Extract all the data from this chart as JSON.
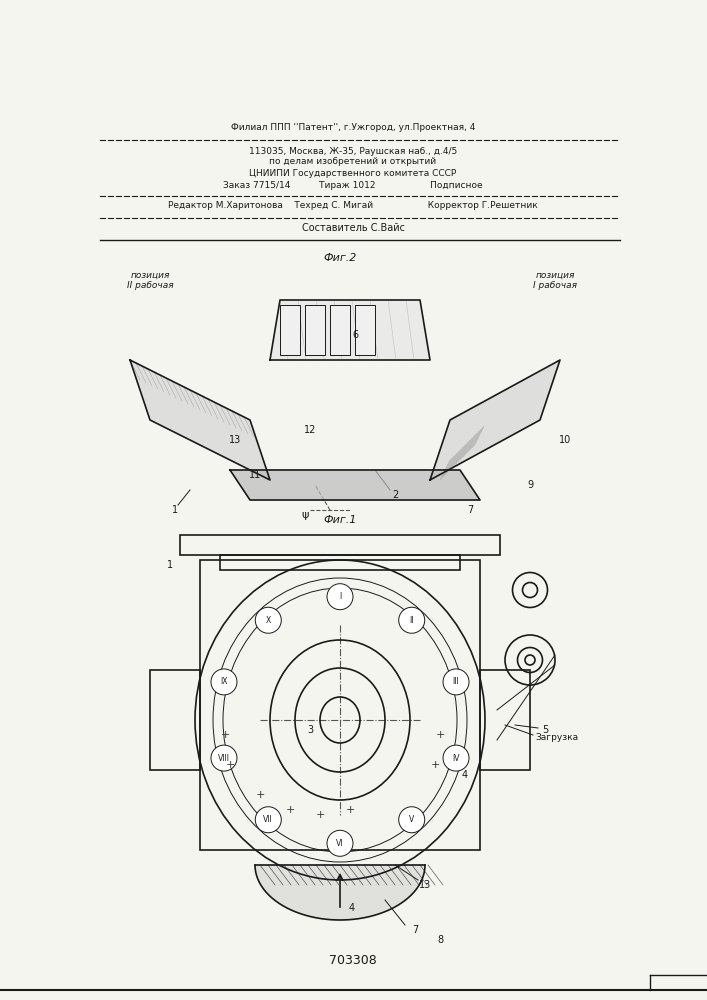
{
  "title_number": "703308",
  "fig1_caption": "Фиг.1",
  "fig2_caption": "Фиг.2",
  "footer_line1": "Составитель С.Вайс",
  "footer_line2": "Редактор М.Харитонова    Техред С. Мигай                   Корректор Г.Решетник",
  "footer_line3": "Заказ 7715/14          Тираж 1012                   Подписное",
  "footer_line4": "ЦНИИПИ Государственного комитета СССР",
  "footer_line5": "по делам изобретений и открытий",
  "footer_line6": "113035, Москва, Ж-35, Раушская наб., д.4/5",
  "footer_line7": "Филиал ППП ''Патент'', г.Ужгород, ул.Проектная, 4",
  "bg_color": "#f5f5f0",
  "line_color": "#1a1a1a",
  "fig1_label": "Загрузка",
  "roman_numerals": [
    "I",
    "II",
    "III",
    "IV",
    "V",
    "VI",
    "VII",
    "VIII",
    "IX",
    "X"
  ],
  "fig_width": 7.07,
  "fig_height": 10.0
}
